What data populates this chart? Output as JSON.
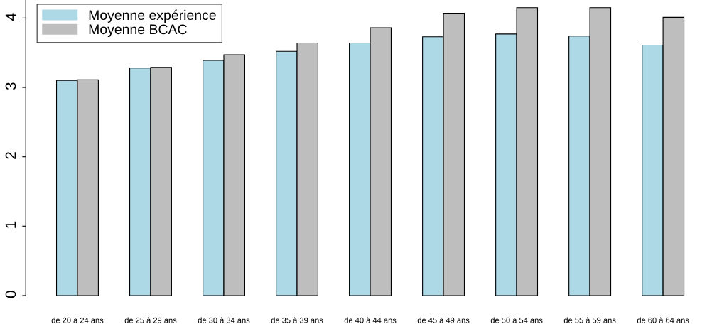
{
  "chart_data": {
    "type": "bar",
    "categories": [
      "de 20 à 24 ans",
      "de 25 à 29 ans",
      "de 30 à 34 ans",
      "de 35 à 39 ans",
      "de 40 à 44 ans",
      "de 45 à 49 ans",
      "de 50 à 54 ans",
      "de 55 à 59 ans",
      "de 60 à 64 ans"
    ],
    "series": [
      {
        "name": "Moyenne expérience",
        "color": "#add8e6",
        "values": [
          3.1,
          3.28,
          3.39,
          3.52,
          3.64,
          3.73,
          3.77,
          3.74,
          3.61
        ]
      },
      {
        "name": "Moyenne BCAC",
        "color": "#bebebe",
        "values": [
          3.11,
          3.29,
          3.47,
          3.64,
          3.86,
          4.07,
          4.15,
          4.15,
          4.01
        ]
      }
    ],
    "ylim": [
      0,
      4.26
    ],
    "yticks": [
      0,
      1,
      2,
      3,
      4
    ],
    "grid": false,
    "legend": "top left"
  }
}
